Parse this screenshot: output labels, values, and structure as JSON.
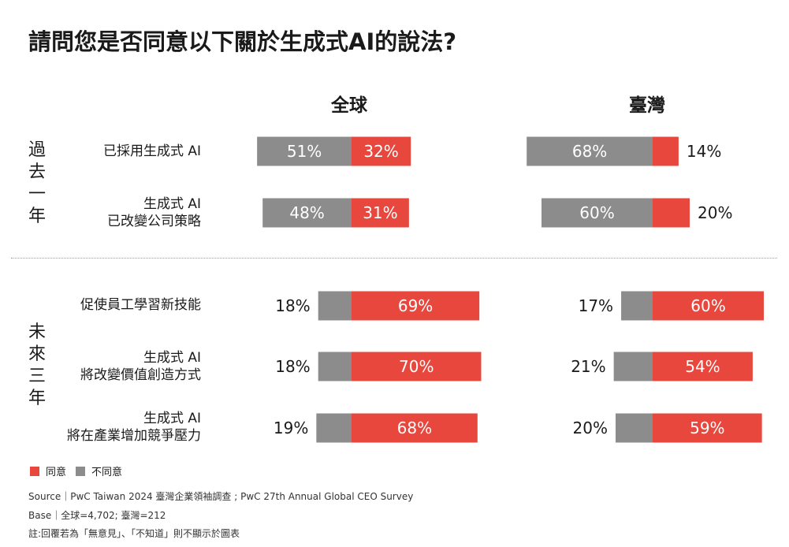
{
  "title": "請問您是否同意以下關於生成式AI的說法?",
  "colors": {
    "agree": "#e8473e",
    "disagree": "#8c8c8c",
    "label_in_bar": "#ffffff",
    "label_out": "#1a1a1a"
  },
  "groups": [
    {
      "label_chars": [
        "過",
        "去",
        "一",
        "年"
      ]
    },
    {
      "label_chars": [
        "未",
        "來",
        "三",
        "年"
      ]
    }
  ],
  "rows": [
    {
      "lines": [
        "已採用生成式 AI"
      ]
    },
    {
      "lines": [
        "生成式 AI",
        "已改變公司策略"
      ]
    },
    {
      "lines": [
        "促使員工學習新技能"
      ]
    },
    {
      "lines": [
        "生成式 AI",
        "將改變價值創造方式"
      ]
    },
    {
      "lines": [
        "生成式 AI",
        "將在產業增加競爭壓力"
      ]
    }
  ],
  "chart_data": {
    "type": "bar",
    "stacked": "diverging",
    "title": "請問您是否同意以下關於生成式AI的說法?",
    "panels": [
      {
        "name": "全球",
        "categories": [
          "已採用生成式 AI",
          "生成式 AI 已改變公司策略",
          "促使員工學習新技能",
          "生成式 AI 將改變價值創造方式",
          "生成式 AI 將在產業增加競爭壓力"
        ],
        "series": [
          {
            "name": "不同意",
            "values": [
              51,
              48,
              18,
              18,
              19
            ]
          },
          {
            "name": "同意",
            "values": [
              32,
              31,
              69,
              70,
              68
            ]
          }
        ],
        "labels": {
          "不同意": [
            "51%",
            "48%",
            "18%",
            "18%",
            "19%"
          ],
          "同意": [
            "32%",
            "31%",
            "69%",
            "70%",
            "68%"
          ]
        }
      },
      {
        "name": "臺灣",
        "categories": [
          "已採用生成式 AI",
          "生成式 AI 已改變公司策略",
          "促使員工學習新技能",
          "生成式 AI 將改變價值創造方式",
          "生成式 AI 將在產業增加競爭壓力"
        ],
        "series": [
          {
            "name": "不同意",
            "values": [
              68,
              60,
              17,
              21,
              20
            ]
          },
          {
            "name": "同意",
            "values": [
              14,
              20,
              60,
              54,
              59
            ]
          }
        ],
        "labels": {
          "不同意": [
            "68%",
            "60%",
            "17%",
            "21%",
            "20%"
          ],
          "同意": [
            "14%",
            "20%",
            "60%",
            "54%",
            "59%"
          ]
        }
      }
    ],
    "legend": [
      "同意",
      "不同意"
    ],
    "legend_position": "bottom-left",
    "grid": false
  },
  "legend": {
    "agree": "同意",
    "disagree": "不同意"
  },
  "footer": {
    "source": "Source｜PwC Taiwan 2024 臺灣企業領袖調查 ; PwC 27th Annual Global CEO Survey",
    "base": "Base｜全球=4,702; 臺灣=212",
    "note": "註:回覆若為「無意見」、「不知道」則不顯示於圖表"
  }
}
